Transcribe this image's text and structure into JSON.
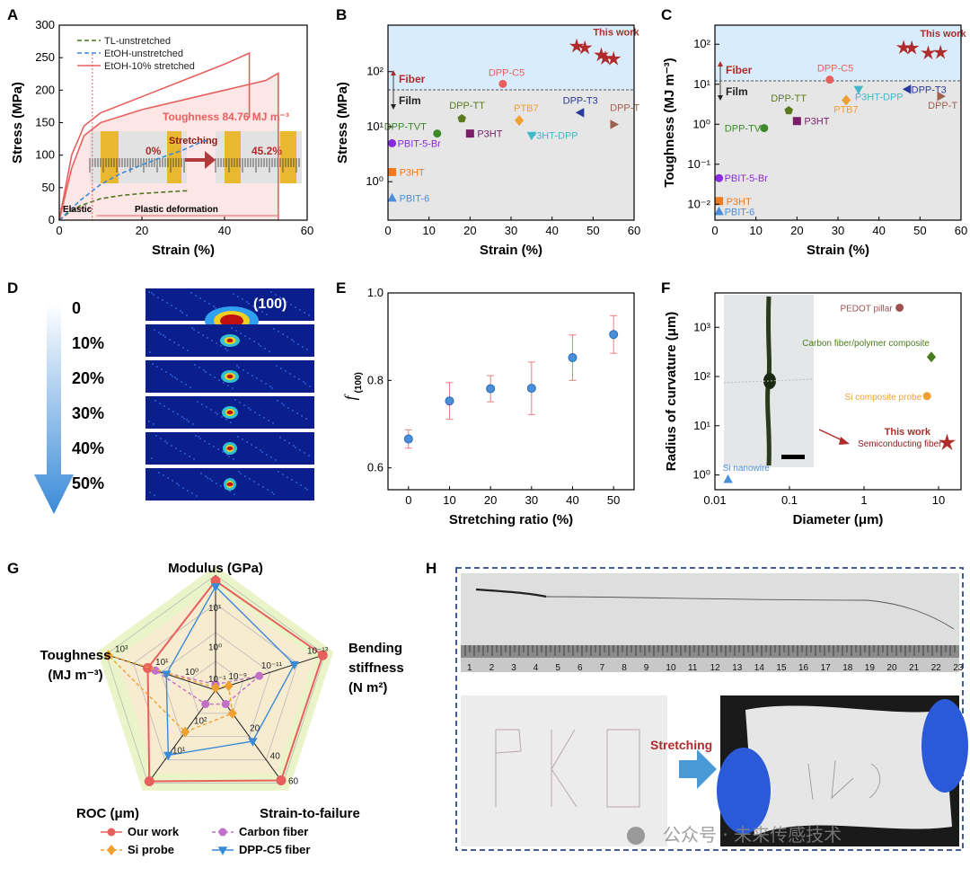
{
  "panels": {
    "A": "A",
    "B": "B",
    "C": "C",
    "D": "D",
    "E": "E",
    "F": "F",
    "G": "G",
    "H": "H"
  },
  "colors": {
    "tl": "#4a7a1e",
    "etoh": "#3a8ad8",
    "stretched": "#e8605e",
    "fiber_bg": "#d9ecfb",
    "film_bg": "#e6e6e6",
    "this_work": "#b02b2b",
    "error": "#e88080",
    "point": "#4a8fd8"
  },
  "chart_data": [
    {
      "id": "A",
      "type": "line",
      "xlabel": "Strain (%)",
      "ylabel": "Stress (MPa)",
      "xlim": [
        0,
        60
      ],
      "ylim": [
        0,
        300
      ],
      "xticks": [
        "0",
        "20",
        "40",
        "60"
      ],
      "yticks": [
        "0",
        "50",
        "100",
        "150",
        "200",
        "250",
        "300"
      ],
      "series": [
        {
          "name": "TL-unstretched",
          "x": [
            0,
            2,
            5,
            10,
            15,
            20,
            25,
            30,
            31
          ],
          "y": [
            0,
            10,
            22,
            33,
            38,
            41,
            43,
            45,
            45
          ]
        },
        {
          "name": "EtOH-unstretched",
          "x": [
            0,
            5,
            10,
            15,
            20,
            25,
            30,
            35,
            36
          ],
          "y": [
            0,
            30,
            55,
            72,
            85,
            97,
            108,
            122,
            122
          ]
        },
        {
          "name": "EtOH-10% stretched",
          "x": [
            0,
            3,
            6,
            10,
            20,
            30,
            40,
            46,
            46
          ],
          "y": [
            0,
            100,
            145,
            165,
            190,
            215,
            240,
            257,
            157
          ]
        },
        {
          "name": "EtOH-10% stretched",
          "x": [
            0,
            3,
            6,
            10,
            20,
            30,
            40,
            50,
            53,
            53
          ],
          "y": [
            0,
            80,
            130,
            150,
            170,
            185,
            200,
            215,
            226,
            0
          ]
        }
      ],
      "annotations": {
        "toughness": "Toughness 84.76 MJ m⁻³",
        "stretching": "Stretching",
        "pct0": "0%",
        "pct45": "45.2%",
        "elastic": "Elastic",
        "plastic": "Plastic deformation"
      }
    },
    {
      "id": "B",
      "type": "scatter",
      "xlabel": "Strain (%)",
      "ylabel": "Stress (MPa)",
      "xlim": [
        0,
        60
      ],
      "log_y": true,
      "ylim": [
        0.2,
        700
      ],
      "xticks": [
        "0",
        "10",
        "20",
        "30",
        "40",
        "50",
        "60"
      ],
      "yticks": [
        "10⁰",
        "10¹",
        "10²"
      ],
      "regions": {
        "fiber": "Fiber",
        "film": "Film"
      },
      "points": [
        {
          "label": "DPP-C5",
          "x": 28,
          "y": 60,
          "color": "#e8605e",
          "marker": "circle"
        },
        {
          "label": "DPP-TT",
          "x": 18,
          "y": 14,
          "color": "#5a7a1e",
          "marker": "pentagon"
        },
        {
          "label": "DPP-TVT",
          "x": 12,
          "y": 7.5,
          "color": "#3a8a2a",
          "marker": "circle"
        },
        {
          "label": "PTB7",
          "x": 32,
          "y": 13,
          "color": "#f0a030",
          "marker": "diamond"
        },
        {
          "label": "DPP-T3",
          "x": 47,
          "y": 18,
          "color": "#2a3a9a",
          "marker": "tri-left"
        },
        {
          "label": "DPP-T",
          "x": 55,
          "y": 11,
          "color": "#a06050",
          "marker": "tri-right"
        },
        {
          "label": "P3HT",
          "x": 20,
          "y": 7.5,
          "color": "#7a1e6a",
          "marker": "square"
        },
        {
          "label": "P3HT-DPP",
          "x": 35,
          "y": 7,
          "color": "#40b8c8",
          "marker": "tri-down"
        },
        {
          "label": "PBIT-5-Br",
          "x": 1,
          "y": 5,
          "color": "#8a2ae0",
          "marker": "circle"
        },
        {
          "label": "P3HT",
          "x": 1,
          "y": 1.5,
          "color": "#f07a20",
          "marker": "square"
        },
        {
          "label": "PBIT-6",
          "x": 1,
          "y": 0.5,
          "color": "#4a8fd8",
          "marker": "tri-up"
        }
      ],
      "this_work": {
        "label": "This work",
        "x": [
          46,
          48,
          52,
          55,
          53
        ],
        "y": [
          290,
          270,
          200,
          170,
          175
        ]
      }
    },
    {
      "id": "C",
      "type": "scatter",
      "xlabel": "Strain (%)",
      "ylabel": "Toughness (MJ m⁻³)",
      "xlim": [
        0,
        60
      ],
      "log_y": true,
      "ylim": [
        0.004,
        300
      ],
      "xticks": [
        "0",
        "10",
        "20",
        "30",
        "40",
        "50",
        "60"
      ],
      "yticks": [
        "10⁻²",
        "10⁻¹",
        "10⁰",
        "10¹",
        "10²"
      ],
      "regions": {
        "fiber": "Fiber",
        "film": "Film"
      },
      "points": [
        {
          "label": "DPP-C5",
          "x": 28,
          "y": 13,
          "color": "#e8605e",
          "marker": "circle"
        },
        {
          "label": "DPP-T3",
          "x": 47,
          "y": 7.5,
          "color": "#2a3a9a",
          "marker": "tri-left"
        },
        {
          "label": "P3HT-DPP",
          "x": 35,
          "y": 7.5,
          "color": "#40b8c8",
          "marker": "tri-down"
        },
        {
          "label": "DPP-T",
          "x": 55,
          "y": 5,
          "color": "#a06050",
          "marker": "tri-right"
        },
        {
          "label": "PTB7",
          "x": 32,
          "y": 4,
          "color": "#f0a030",
          "marker": "diamond"
        },
        {
          "label": "DPP-TT",
          "x": 18,
          "y": 2.2,
          "color": "#5a7a1e",
          "marker": "pentagon"
        },
        {
          "label": "P3HT",
          "x": 20,
          "y": 1.2,
          "color": "#7a1e6a",
          "marker": "square"
        },
        {
          "label": "DPP-TVT",
          "x": 12,
          "y": 0.8,
          "color": "#3a8a2a",
          "marker": "circle"
        },
        {
          "label": "PBIT-5-Br",
          "x": 1,
          "y": 0.045,
          "color": "#8a2ae0",
          "marker": "circle"
        },
        {
          "label": "P3HT",
          "x": 1,
          "y": 0.012,
          "color": "#f07a20",
          "marker": "square"
        },
        {
          "label": "PBIT-6",
          "x": 1,
          "y": 0.0065,
          "color": "#4a8fd8",
          "marker": "tri-up"
        }
      ],
      "this_work": {
        "label": "This work",
        "x": [
          46,
          48,
          52,
          55
        ],
        "y": [
          82,
          80,
          60,
          62
        ]
      }
    },
    {
      "id": "D",
      "type": "other",
      "labels": [
        "0",
        "10%",
        "20%",
        "30%",
        "40%",
        "50%"
      ],
      "peak": "(100)"
    },
    {
      "id": "E",
      "type": "scatter",
      "xlabel": "Stretching ratio (%)",
      "ylabel": "f",
      "ylabel_sub": "(100)",
      "xlim": [
        -5,
        55
      ],
      "ylim": [
        0.55,
        1.0
      ],
      "xticks": [
        "0",
        "10",
        "20",
        "30",
        "40",
        "50"
      ],
      "yticks": [
        "0.6",
        "0.8",
        "1.0"
      ],
      "x": [
        0,
        10,
        20,
        30,
        40,
        50
      ],
      "y": [
        0.666,
        0.753,
        0.781,
        0.782,
        0.852,
        0.905
      ],
      "err": [
        0.021,
        0.042,
        0.03,
        0.06,
        0.052,
        0.043
      ]
    },
    {
      "id": "F",
      "type": "scatter",
      "xlabel": "Diameter (μm)",
      "ylabel": "Radius of curvature (μm)",
      "log_x": true,
      "log_y": true,
      "xlim": [
        0.01,
        20
      ],
      "ylim": [
        0.5,
        5000
      ],
      "xticks": [
        "0.01",
        "0.1",
        "1",
        "10"
      ],
      "yticks": [
        "10⁰",
        "10¹",
        "10²",
        "10³"
      ],
      "points": [
        {
          "label": "PEDOT pillar",
          "x": 3,
          "y": 2500,
          "color": "#a05050",
          "marker": "circle"
        },
        {
          "label": "Carbon fiber/polymer composite",
          "x": 8,
          "y": 250,
          "color": "#4a7a1e",
          "marker": "diamond"
        },
        {
          "label": "Si composite probe",
          "x": 7,
          "y": 40,
          "color": "#f0a030",
          "marker": "circle"
        },
        {
          "label": "Semiconducting fiber",
          "x": 13,
          "y": 4.5,
          "color": "#b02b2b",
          "marker": "star"
        },
        {
          "label": "Si nanowire",
          "x": 0.015,
          "y": 0.8,
          "color": "#4a8fd8",
          "marker": "tri-up"
        }
      ],
      "this_work": "This work"
    },
    {
      "id": "G",
      "type": "radar",
      "axes": [
        "Modulus (GPa)",
        "Bending stiffness (N m²)",
        "Strain-to-failure",
        "ROC (μm)",
        "Toughness (MJ m⁻³)"
      ],
      "axis_label_lines": [
        [
          "Modulus (GPa)"
        ],
        [
          "Bending",
          "stiffness",
          "(N m²)"
        ],
        [
          "Strain-to-failure"
        ],
        [
          "ROC (μm)"
        ],
        [
          "Toughness",
          "(MJ m⁻³)"
        ]
      ],
      "ring_labels": {
        "modulus": [
          "10⁻¹",
          "10⁰",
          "10¹"
        ],
        "bending": [
          "10⁻⁹",
          "10⁻¹¹",
          "10⁻¹³"
        ],
        "strain": [
          "20",
          "40",
          "60"
        ],
        "roc": [
          "10²",
          "10¹"
        ],
        "toughness": [
          "10⁰",
          "10¹",
          "10³"
        ]
      },
      "series": [
        {
          "name": "Our work",
          "values": [
            0.95,
            0.98,
            0.97,
            0.98,
            0.62
          ],
          "color": "#e8605e",
          "marker": "circle"
        },
        {
          "name": "Carbon fiber",
          "values": [
            0.05,
            0.4,
            0.15,
            0.15,
            0.55
          ],
          "color": "#c070c8",
          "marker": "circle"
        },
        {
          "name": "Si probe",
          "values": [
            0.02,
            0.12,
            0.25,
            0.45,
            0.98
          ],
          "color": "#f0a030",
          "marker": "diamond"
        },
        {
          "name": "DPP-C5 fiber",
          "values": [
            0.9,
            0.72,
            0.55,
            0.7,
            0.45
          ],
          "color": "#3a8ad8",
          "marker": "tri-down"
        }
      ]
    },
    {
      "id": "H",
      "type": "other",
      "ruler": [
        "1",
        "2",
        "3",
        "4",
        "5",
        "6",
        "7",
        "8",
        "9",
        "10",
        "11",
        "12",
        "13",
        "14",
        "15",
        "16",
        "17",
        "18",
        "19",
        "20",
        "21",
        "22",
        "23"
      ],
      "stretching": "Stretching",
      "watermark": "公众号 · 未来传感技术"
    }
  ]
}
